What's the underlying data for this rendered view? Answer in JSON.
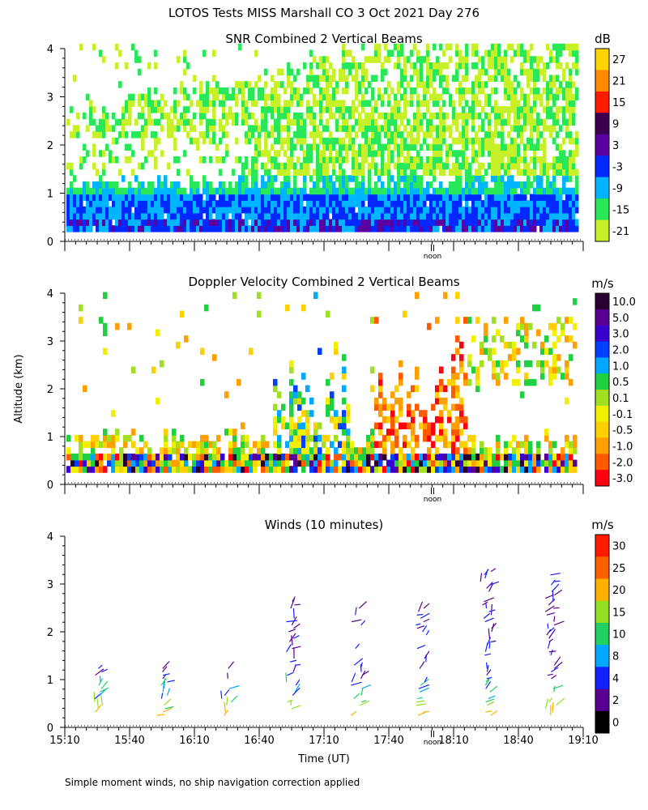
{
  "figure": {
    "title": "LOTOS Tests MISS Marshall CO   3 Oct 2021 Day 276",
    "ylabel": "Altitude (km)",
    "xlabel": "Time (UT)",
    "footnote": "Simple moment winds, no ship navigation correction applied",
    "noon_label": "noon"
  },
  "chart_data": [
    {
      "type": "heatmap",
      "title": "SNR Combined 2 Vertical Beams",
      "colorbar_label": "dB",
      "colorbar_ticks": [
        "27",
        "21",
        "15",
        "9",
        "3",
        "-3",
        "-9",
        "-15",
        "-21"
      ],
      "colors": [
        "#ffd400",
        "#ff8a00",
        "#ff1a00",
        "#3c0050",
        "#5a00a0",
        "#0028ff",
        "#00b4ff",
        "#28e85a",
        "#c8f028"
      ],
      "xlabel": "Time (UT)",
      "ylabel": "Altitude (km)",
      "xlim": [
        "15:10",
        "19:10"
      ],
      "ylim": [
        0,
        4
      ],
      "yticks": [
        "0",
        "1",
        "2",
        "3",
        "4"
      ],
      "xticks": [
        "15:10",
        "15:40",
        "16:10",
        "16:40",
        "17:10",
        "17:40",
        "18:10",
        "18:40",
        "19:10"
      ]
    },
    {
      "type": "heatmap",
      "title": "Doppler Velocity Combined 2 Vertical Beams",
      "colorbar_label": "m/s",
      "colorbar_ticks": [
        "10.0",
        "5.0",
        "3.0",
        "2.0",
        "1.0",
        "0.5",
        "0.1",
        "-0.1",
        "-0.5",
        "-1.0",
        "-2.0",
        "-3.0"
      ],
      "colors": [
        "#2a0030",
        "#5a0090",
        "#3a00d0",
        "#0040ff",
        "#00a8ff",
        "#20d040",
        "#a0e020",
        "#f0f000",
        "#ffd000",
        "#ffa000",
        "#ff5a00",
        "#ff0010"
      ],
      "xlabel": "Time (UT)",
      "ylabel": "Altitude (km)",
      "xlim": [
        "15:10",
        "19:10"
      ],
      "ylim": [
        0,
        4
      ],
      "yticks": [
        "0",
        "1",
        "2",
        "3",
        "4"
      ],
      "xticks": [
        "15:10",
        "15:40",
        "16:10",
        "16:40",
        "17:10",
        "17:40",
        "18:10",
        "18:40",
        "19:10"
      ]
    },
    {
      "type": "scatter",
      "title": "Winds (10 minutes)",
      "colorbar_label": "m/s",
      "colorbar_ticks": [
        "30",
        "25",
        "20",
        "15",
        "10",
        "8",
        "4",
        "2",
        "0"
      ],
      "colors": [
        "#ff1a00",
        "#ff6000",
        "#ffb000",
        "#90e020",
        "#20d060",
        "#00a8ff",
        "#1020ff",
        "#5a0090",
        "#000000"
      ],
      "xlabel": "Time (UT)",
      "ylabel": "Altitude (km)",
      "xlim": [
        "15:10",
        "19:10"
      ],
      "ylim": [
        0,
        4
      ],
      "yticks": [
        "0",
        "1",
        "2",
        "3",
        "4"
      ],
      "xticks": [
        "15:10",
        "15:40",
        "16:10",
        "16:40",
        "17:10",
        "17:40",
        "18:10",
        "18:40",
        "19:10"
      ],
      "profile_times": [
        "15:25",
        "15:55",
        "16:25",
        "16:55",
        "17:25",
        "17:55",
        "18:25",
        "18:55"
      ],
      "profile_tops_km": [
        1.3,
        1.3,
        1.3,
        2.7,
        2.5,
        2.5,
        3.3,
        3.2
      ]
    }
  ]
}
